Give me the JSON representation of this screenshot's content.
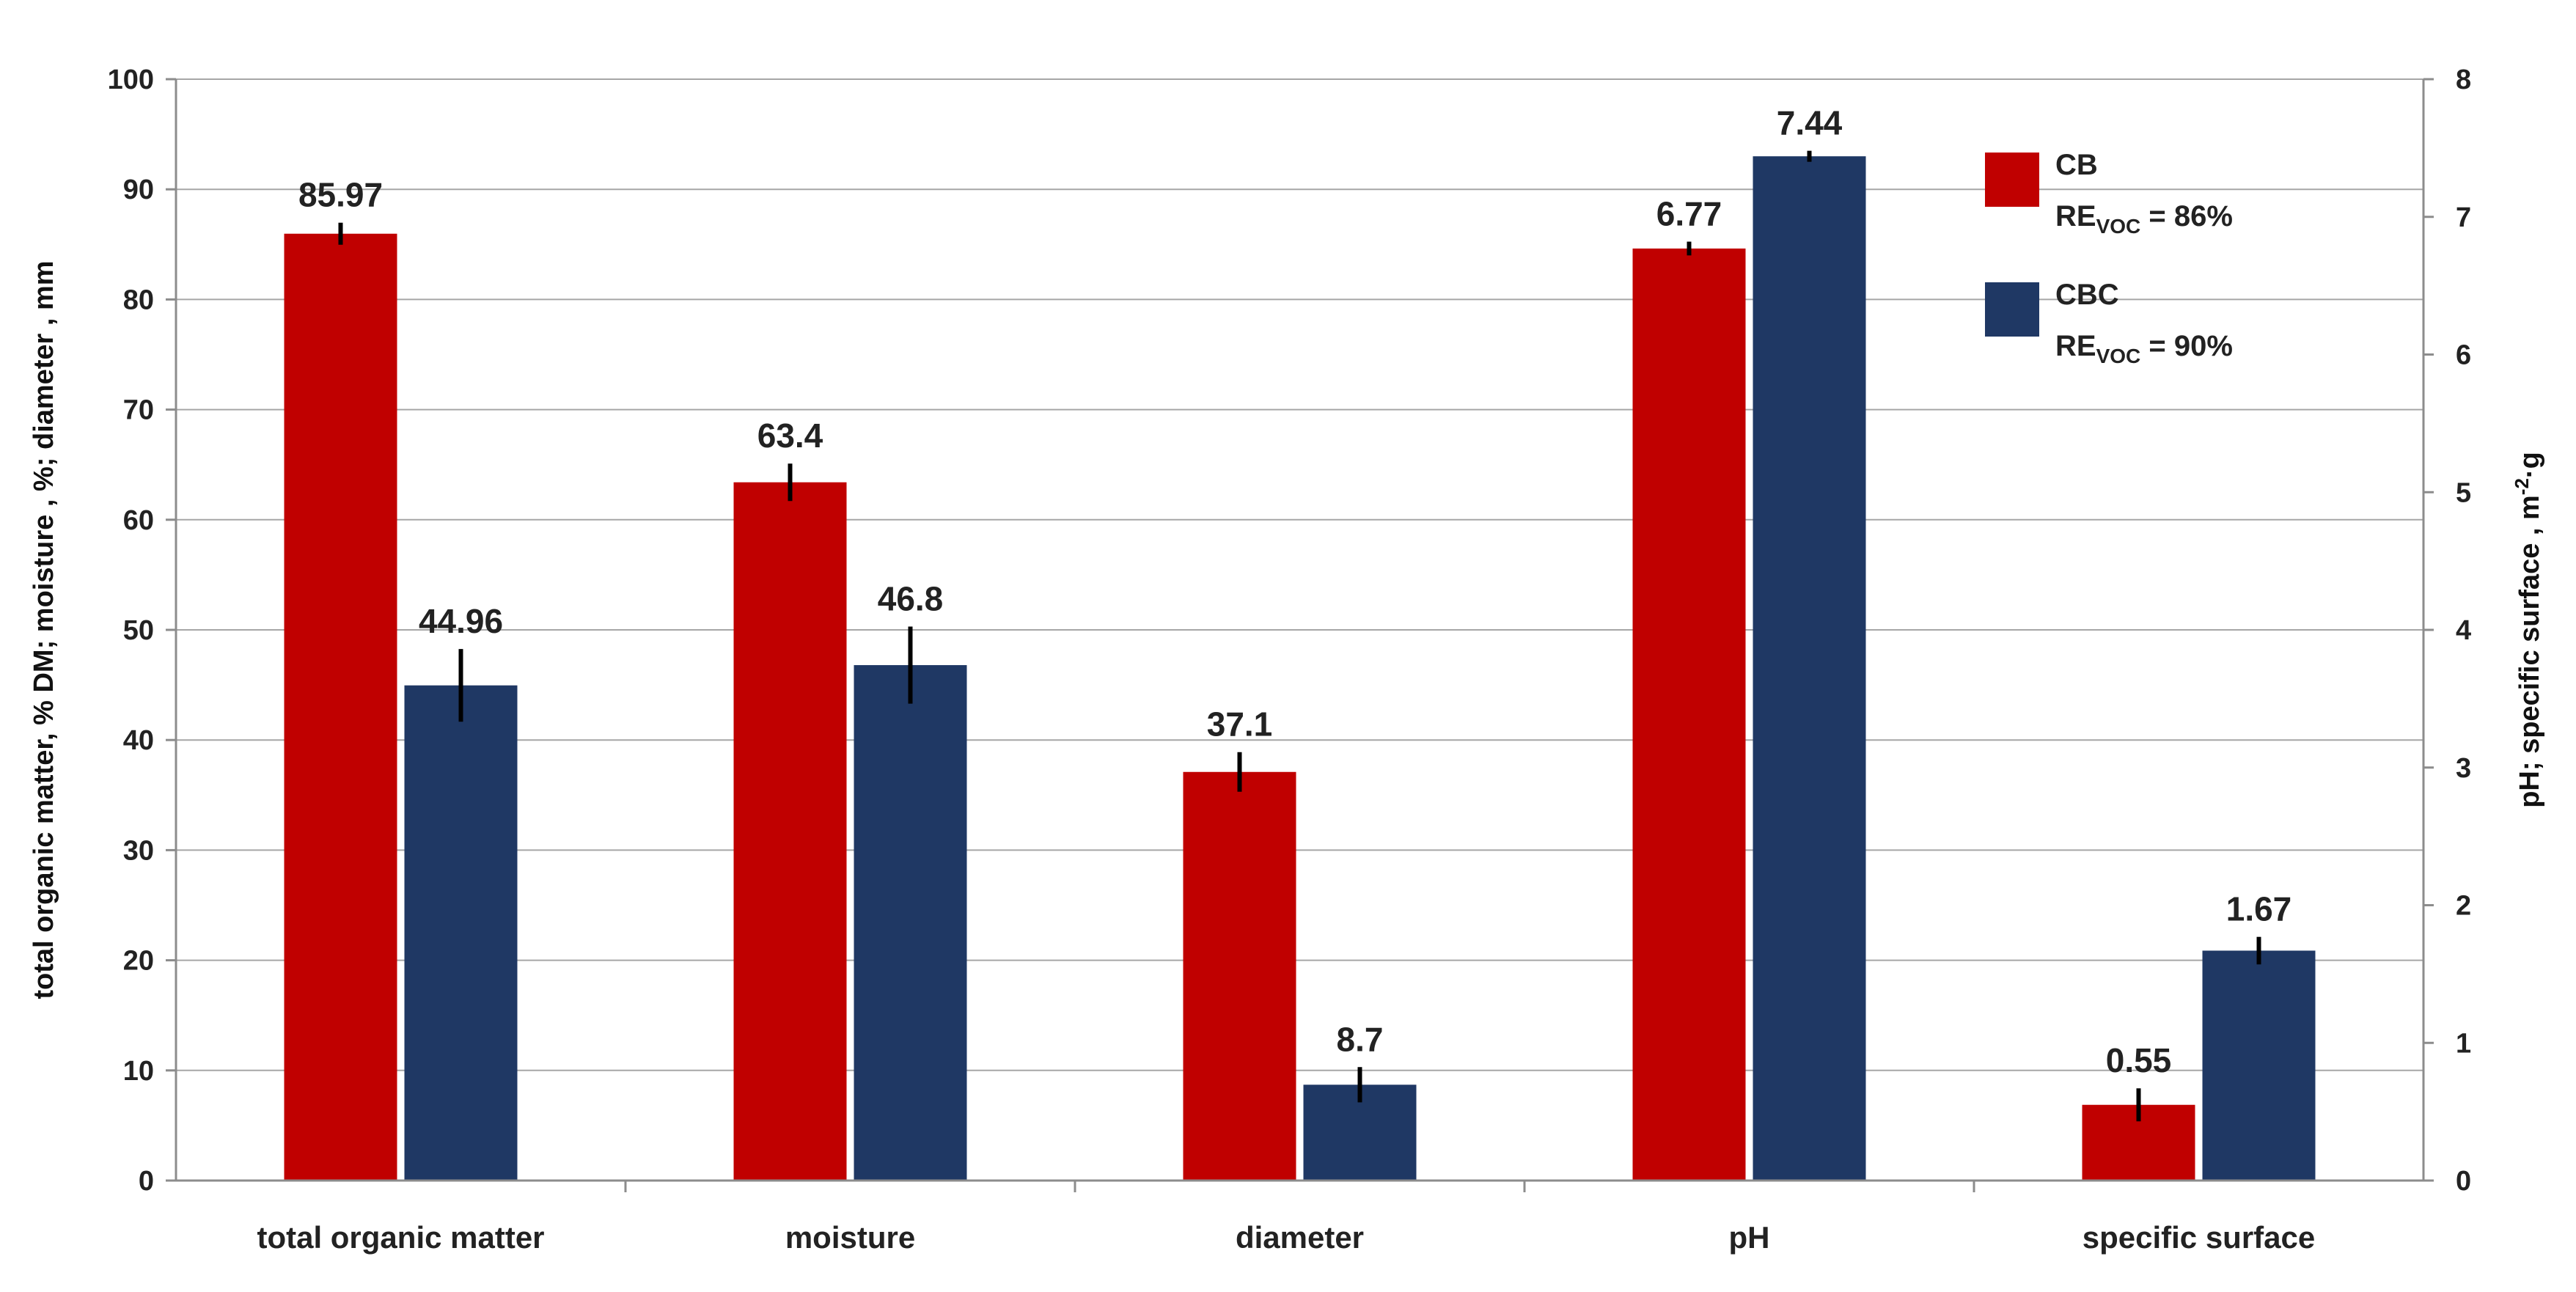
{
  "chart_data": {
    "type": "bar",
    "title": "",
    "categories": [
      "total organic matter",
      "moisture",
      "diameter",
      "pH",
      "specific surface"
    ],
    "series": [
      {
        "name": "CB",
        "legend_note": {
          "prefix": "RE",
          "sub": "VOC",
          "suffix": " = 86%"
        },
        "color": "#c00000",
        "axis": [
          "left",
          "left",
          "left",
          "right",
          "right"
        ],
        "values": [
          85.97,
          63.4,
          37.1,
          6.77,
          0.55
        ],
        "labels": [
          "85.97",
          "63.4",
          "37.1",
          "6.77",
          "0.55"
        ],
        "errors": [
          1.0,
          1.7,
          1.8,
          0.05,
          0.12
        ]
      },
      {
        "name": "CBC",
        "legend_note": {
          "prefix": "RE",
          "sub": "VOC",
          "suffix": " = 90%"
        },
        "color": "#1f3864",
        "axis": [
          "left",
          "left",
          "left",
          "right",
          "right"
        ],
        "values": [
          44.96,
          46.8,
          8.7,
          7.44,
          1.67
        ],
        "labels": [
          "44.96",
          "46.8",
          "8.7",
          "7.44",
          "1.67"
        ],
        "errors": [
          3.3,
          3.5,
          1.6,
          0.04,
          0.1
        ]
      }
    ],
    "y_left": {
      "label": "total organic matter, % DM;  moisture , %;  diameter , mm",
      "ylim": [
        0,
        100
      ],
      "ticks": [
        "0",
        "10",
        "20",
        "30",
        "40",
        "50",
        "60",
        "70",
        "80",
        "90",
        "100"
      ]
    },
    "y_right": {
      "label": "pH; specific surface  , m",
      "label_sup": "-2",
      "label_tail": "·g",
      "ylim": [
        0,
        8
      ],
      "ticks": [
        "0",
        "1",
        "2",
        "3",
        "4",
        "5",
        "6",
        "7",
        "8"
      ]
    },
    "grid": true,
    "legend_position": "top-right"
  }
}
